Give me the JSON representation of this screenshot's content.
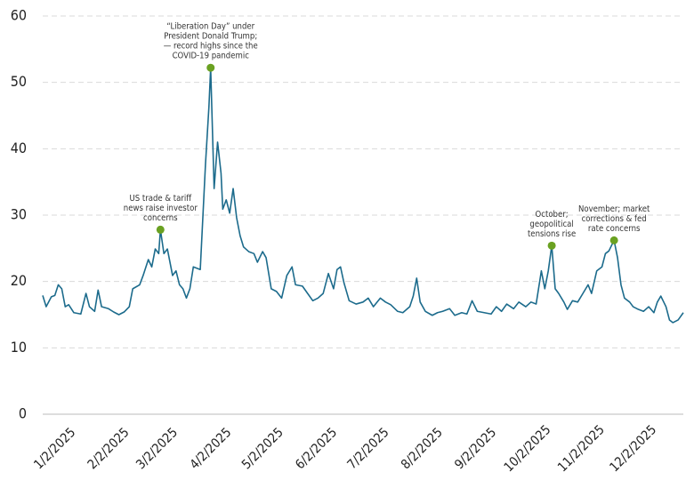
{
  "chart_data": {
    "type": "line",
    "xlim": [
      0,
      370
    ],
    "xticks": [
      {
        "value": 1,
        "label": "1/2/2025"
      },
      {
        "value": 32,
        "label": "2/2/2025"
      },
      {
        "value": 60,
        "label": "3/2/2025"
      },
      {
        "value": 91,
        "label": "4/2/2025"
      },
      {
        "value": 121,
        "label": "5/2/2025"
      },
      {
        "value": 152,
        "label": "6/2/2025"
      },
      {
        "value": 182,
        "label": "7/2/2025"
      },
      {
        "value": 213,
        "label": "8/2/2025"
      },
      {
        "value": 244,
        "label": "9/2/2025"
      },
      {
        "value": 274,
        "label": "10/2/2025"
      },
      {
        "value": 305,
        "label": "11/2/2025"
      },
      {
        "value": 335,
        "label": "12/2/2025"
      }
    ],
    "ylim": [
      0,
      60
    ],
    "yticks": [
      0,
      10,
      20,
      30,
      40,
      50,
      60
    ],
    "grid": true,
    "color": "#1c6b8c",
    "x": [
      0,
      2,
      5,
      7,
      9,
      11,
      13,
      15,
      18,
      22,
      25,
      27,
      30,
      32,
      34,
      38,
      41,
      44,
      47,
      50,
      52,
      56,
      58,
      61,
      63,
      65,
      67,
      68,
      70,
      72,
      75,
      77,
      79,
      81,
      83,
      85,
      87,
      91,
      94,
      96,
      97,
      99,
      101,
      103,
      104,
      106,
      108,
      110,
      112,
      114,
      116,
      119,
      122,
      124,
      127,
      129,
      132,
      135,
      138,
      141,
      144,
      146,
      150,
      153,
      156,
      159,
      162,
      165,
      168,
      170,
      172,
      174,
      177,
      181,
      185,
      188,
      191,
      195,
      198,
      201,
      205,
      208,
      212,
      214,
      216,
      218,
      221,
      225,
      228,
      231,
      235,
      238,
      242,
      245,
      248,
      251,
      255,
      259,
      262,
      265,
      268,
      272,
      275,
      279,
      282,
      285,
      288,
      290,
      292,
      294,
      296,
      298,
      301,
      303,
      306,
      309,
      312,
      315,
      317,
      320,
      323,
      325,
      327,
      330,
      332,
      334,
      336,
      339,
      341,
      344,
      347,
      350,
      353,
      355,
      357,
      360,
      362,
      364,
      367,
      370
    ],
    "values": [
      17.9,
      16.2,
      17.7,
      17.9,
      19.5,
      18.9,
      16.2,
      16.5,
      15.3,
      15.1,
      18.2,
      16.2,
      15.5,
      18.7,
      16.2,
      15.9,
      15.4,
      15.0,
      15.4,
      16.2,
      18.9,
      19.5,
      20.9,
      23.3,
      22.2,
      24.9,
      24.2,
      27.8,
      24.2,
      24.9,
      20.9,
      21.6,
      19.5,
      18.9,
      17.5,
      18.9,
      22.2,
      21.8,
      37.6,
      46.3,
      52.2,
      34.0,
      41.0,
      36.3,
      30.9,
      32.3,
      30.3,
      34.0,
      29.6,
      26.9,
      25.2,
      24.5,
      24.2,
      22.9,
      24.5,
      23.6,
      18.9,
      18.5,
      17.5,
      20.9,
      22.2,
      19.5,
      19.3,
      18.2,
      17.1,
      17.5,
      18.2,
      21.2,
      18.9,
      21.8,
      22.2,
      19.8,
      17.1,
      16.6,
      16.9,
      17.5,
      16.2,
      17.5,
      16.9,
      16.5,
      15.5,
      15.3,
      16.2,
      17.8,
      20.5,
      16.9,
      15.5,
      14.9,
      15.3,
      15.5,
      15.9,
      14.9,
      15.3,
      15.1,
      17.1,
      15.5,
      15.3,
      15.1,
      16.2,
      15.5,
      16.6,
      15.9,
      16.9,
      16.2,
      16.9,
      16.6,
      21.6,
      18.9,
      21.6,
      25.4,
      18.9,
      18.2,
      16.9,
      15.8,
      17.1,
      16.9,
      18.2,
      19.5,
      18.2,
      21.6,
      22.2,
      24.2,
      24.6,
      26.2,
      23.6,
      19.5,
      17.5,
      16.9,
      16.2,
      15.8,
      15.5,
      16.2,
      15.3,
      16.9,
      17.8,
      16.2,
      14.2,
      13.8,
      14.2,
      15.3
    ],
    "annotations": [
      {
        "x": 68,
        "y": 27.8,
        "color": "#6aa121",
        "text": [
          "US trade & tariff",
          "news raise investor",
          "concerns"
        ]
      },
      {
        "x": 97,
        "y": 52.2,
        "color": "#6aa121",
        "text": [
          "“Liberation Day” under",
          "President Donald Trump;",
          "— record highs since the",
          "COVID-19 pandemic"
        ]
      },
      {
        "x": 294,
        "y": 25.4,
        "color": "#6aa121",
        "text": [
          "October;",
          "geopolitical",
          "tensions rise"
        ]
      },
      {
        "x": 330,
        "y": 26.2,
        "color": "#6aa121",
        "text": [
          "November; market",
          "corrections & fed",
          "rate concerns"
        ]
      }
    ]
  }
}
